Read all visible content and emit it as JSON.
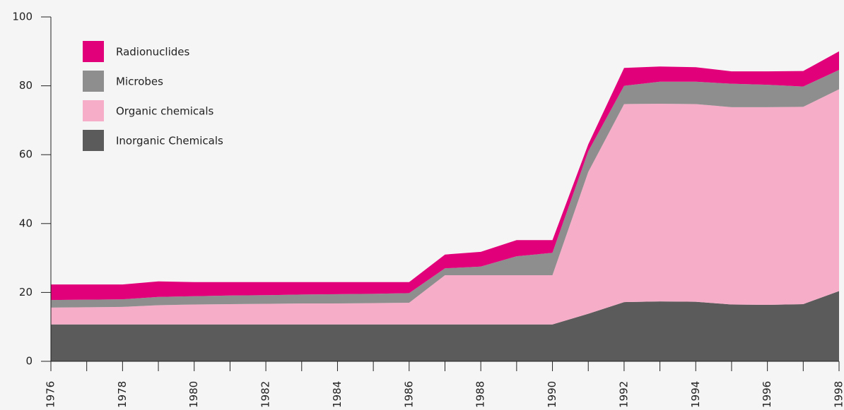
{
  "chart_data": {
    "type": "stacked-area",
    "x": [
      1976,
      1977,
      1978,
      1979,
      1980,
      1981,
      1982,
      1983,
      1984,
      1985,
      1986,
      1987,
      1988,
      1989,
      1990,
      1991,
      1992,
      1993,
      1994,
      1995,
      1996,
      1997,
      1998
    ],
    "series": [
      {
        "name": "Inorganic Chemicals",
        "color": "#5b5b5b",
        "values": [
          10.7,
          10.7,
          10.7,
          10.7,
          10.7,
          10.7,
          10.7,
          10.7,
          10.7,
          10.7,
          10.7,
          10.7,
          10.7,
          10.7,
          10.7,
          13.8,
          17.2,
          17.4,
          17.3,
          16.5,
          16.4,
          16.6,
          20.4
        ]
      },
      {
        "name": "Organic chemicals",
        "color": "#f6aec8",
        "values": [
          4.9,
          5.0,
          5.1,
          5.6,
          5.8,
          5.9,
          6.0,
          6.1,
          6.1,
          6.2,
          6.3,
          14.3,
          14.3,
          14.3,
          14.3,
          41.2,
          57.5,
          57.4,
          57.4,
          57.3,
          57.4,
          57.3,
          58.6
        ]
      },
      {
        "name": "Microbes",
        "color": "#8e8e8e",
        "values": [
          2.2,
          2.2,
          2.2,
          2.4,
          2.4,
          2.5,
          2.5,
          2.6,
          2.7,
          2.7,
          2.8,
          2.0,
          2.5,
          5.5,
          6.5,
          6.0,
          5.3,
          6.4,
          6.5,
          6.8,
          6.5,
          5.9,
          5.6
        ]
      },
      {
        "name": "Radionuclides",
        "color": "#e2007a",
        "values": [
          4.5,
          4.4,
          4.3,
          4.5,
          4.1,
          3.9,
          3.8,
          3.6,
          3.5,
          3.4,
          3.2,
          4.0,
          4.3,
          4.7,
          3.7,
          2.0,
          5.2,
          4.4,
          4.2,
          3.6,
          3.9,
          4.5,
          5.4
        ]
      }
    ],
    "xlim": [
      1976,
      1998
    ],
    "xticks": [
      1976,
      1978,
      1980,
      1982,
      1984,
      1986,
      1988,
      1990,
      1992,
      1994,
      1996,
      1998
    ],
    "ylim": [
      0,
      100
    ],
    "yticks": [
      0,
      20,
      40,
      60,
      80,
      100
    ],
    "legend": "upper left"
  }
}
